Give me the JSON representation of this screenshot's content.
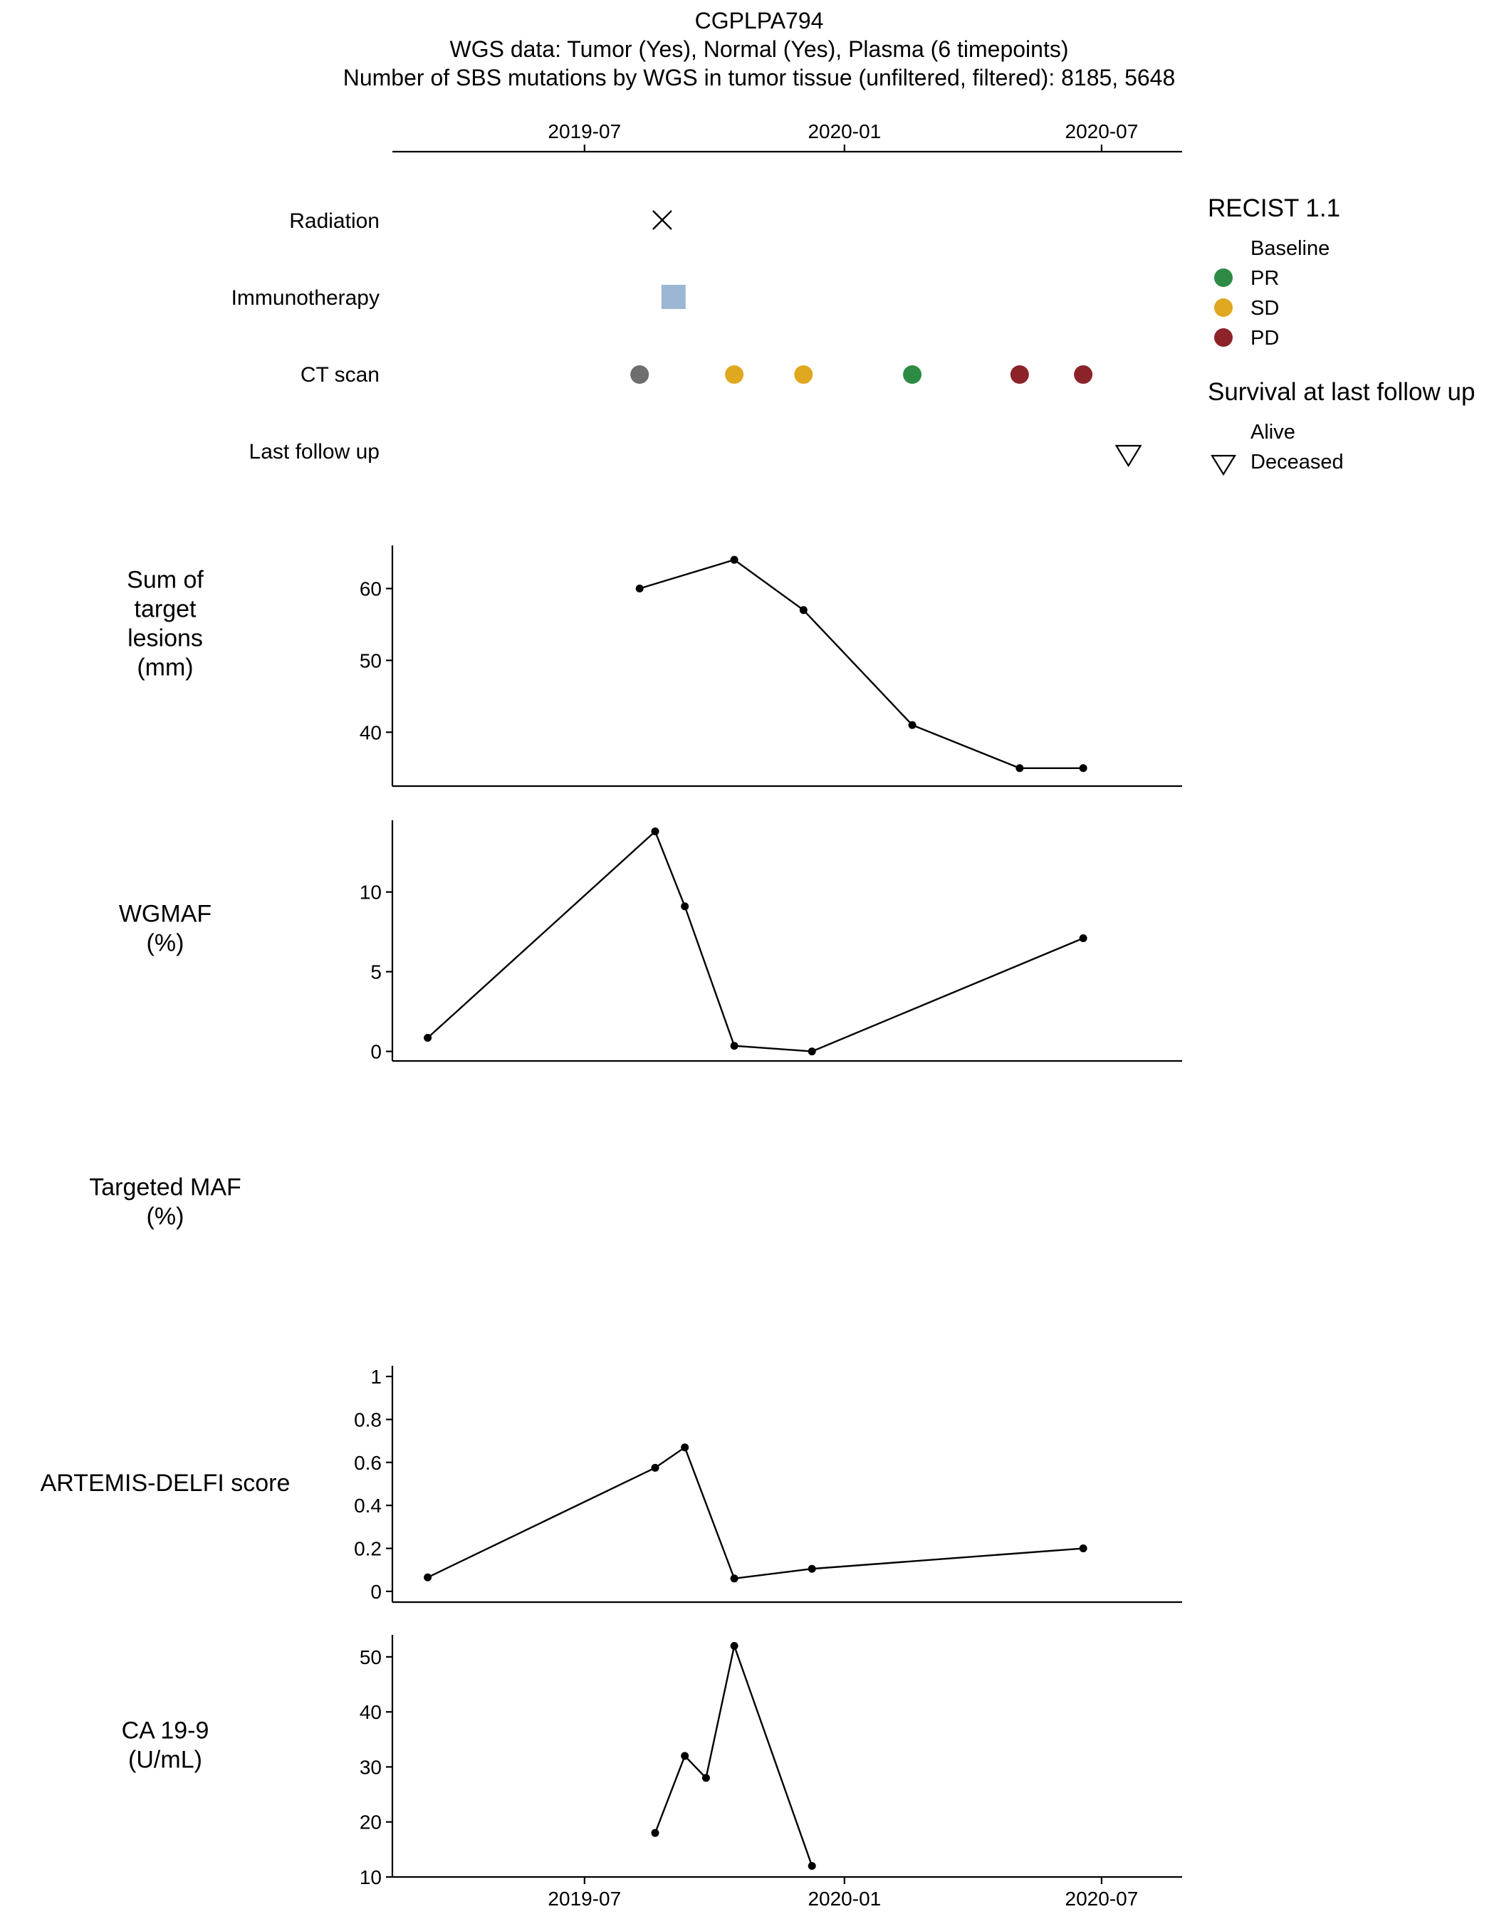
{
  "title_lines": [
    "CGPLPA794",
    "WGS data: Tumor (Yes), Normal (Yes), Plasma (6 timepoints)",
    "Number of SBS mutations by WGS in tumor tissue (unfiltered, filtered): 8185, 5648"
  ],
  "time_axis": {
    "range": [
      "2019-02-15",
      "2020-08-27"
    ],
    "ticks": [
      {
        "date": "2019-07-01",
        "label": "2019-07"
      },
      {
        "date": "2020-01-01",
        "label": "2020-01"
      },
      {
        "date": "2020-07-01",
        "label": "2020-07"
      }
    ]
  },
  "timeline": {
    "rows": [
      {
        "key": "radiation",
        "label": "Radiation"
      },
      {
        "key": "immunotherapy",
        "label": "Immunotherapy"
      },
      {
        "key": "ct",
        "label": "CT scan"
      },
      {
        "key": "followup",
        "label": "Last follow up"
      }
    ],
    "radiation": [
      {
        "date": "2019-08-25",
        "shape": "x",
        "color": "#000000"
      }
    ],
    "immunotherapy": [
      {
        "date": "2019-09-02",
        "shape": "square",
        "color": "#9bb7d4"
      }
    ],
    "ct": [
      {
        "date": "2019-08-09",
        "response": "Baseline"
      },
      {
        "date": "2019-10-15",
        "response": "SD"
      },
      {
        "date": "2019-12-03",
        "response": "SD"
      },
      {
        "date": "2020-02-18",
        "response": "PR"
      },
      {
        "date": "2020-05-04",
        "response": "PD"
      },
      {
        "date": "2020-06-18",
        "response": "PD"
      }
    ],
    "followup": [
      {
        "date": "2020-07-20",
        "status": "Deceased"
      }
    ]
  },
  "legend": {
    "recist_title": "RECIST 1.1",
    "recist_items": [
      {
        "label": "Baseline",
        "color": "#6e6e6e",
        "shape": "none"
      },
      {
        "label": "PR",
        "color": "#2e8b45",
        "shape": "circle"
      },
      {
        "label": "SD",
        "color": "#e0a820",
        "shape": "circle"
      },
      {
        "label": "PD",
        "color": "#8b2329",
        "shape": "circle"
      }
    ],
    "survival_title": "Survival at last follow up",
    "survival_items": [
      {
        "label": "Alive",
        "shape": "none"
      },
      {
        "label": "Deceased",
        "shape": "triangle-down"
      }
    ]
  },
  "chart_data": [
    {
      "type": "line",
      "key": "lesions",
      "ylabel_lines": [
        "Sum of",
        "target",
        "lesions",
        "(mm)"
      ],
      "ylim": [
        32.5,
        66
      ],
      "yticks": [
        40,
        50,
        60
      ],
      "points": [
        {
          "x": "2019-08-09",
          "y": 60
        },
        {
          "x": "2019-10-15",
          "y": 64
        },
        {
          "x": "2019-12-03",
          "y": 57
        },
        {
          "x": "2020-02-18",
          "y": 41
        },
        {
          "x": "2020-05-04",
          "y": 35
        },
        {
          "x": "2020-06-18",
          "y": 35
        }
      ]
    },
    {
      "type": "line",
      "key": "wgmaf",
      "ylabel_lines": [
        "WGMAF",
        "(%)"
      ],
      "ylim": [
        -0.6,
        14.5
      ],
      "yticks": [
        0,
        5,
        10
      ],
      "points": [
        {
          "x": "2019-03-12",
          "y": 0.85
        },
        {
          "x": "2019-08-20",
          "y": 13.8
        },
        {
          "x": "2019-09-10",
          "y": 9.1
        },
        {
          "x": "2019-10-15",
          "y": 0.35
        },
        {
          "x": "2019-12-09",
          "y": 0.0
        },
        {
          "x": "2020-06-18",
          "y": 7.1
        }
      ]
    },
    {
      "type": "line",
      "key": "targeted",
      "ylabel_lines": [
        "Targeted MAF",
        "(%)"
      ],
      "points": []
    },
    {
      "type": "line",
      "key": "artemis",
      "ylabel_lines": [
        "ARTEMIS-DELFI score"
      ],
      "ylim": [
        -0.05,
        1.05
      ],
      "yticks": [
        0,
        0.2,
        0.4,
        0.6,
        0.8,
        1
      ],
      "ytick_labels": [
        "0",
        "0.2",
        "0.4",
        "0.6",
        "0.8",
        "1"
      ],
      "points": [
        {
          "x": "2019-03-12",
          "y": 0.065
        },
        {
          "x": "2019-08-20",
          "y": 0.575
        },
        {
          "x": "2019-09-10",
          "y": 0.67
        },
        {
          "x": "2019-10-15",
          "y": 0.06
        },
        {
          "x": "2019-12-09",
          "y": 0.105
        },
        {
          "x": "2020-06-18",
          "y": 0.2
        }
      ]
    },
    {
      "type": "line",
      "key": "ca199",
      "ylabel_lines": [
        "CA 19-9",
        "(U/mL)"
      ],
      "ylim": [
        10,
        54
      ],
      "yticks": [
        10,
        20,
        30,
        40,
        50
      ],
      "points": [
        {
          "x": "2019-08-20",
          "y": 18
        },
        {
          "x": "2019-09-10",
          "y": 32
        },
        {
          "x": "2019-09-25",
          "y": 28
        },
        {
          "x": "2019-10-15",
          "y": 52
        },
        {
          "x": "2019-12-09",
          "y": 12
        }
      ]
    }
  ]
}
